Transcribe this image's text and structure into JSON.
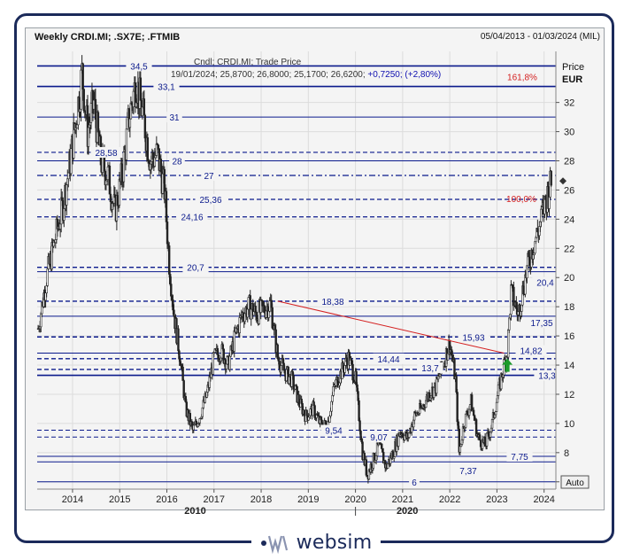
{
  "header": {
    "title": "Weekly CRDI.MI; .SX7E; .FTMIB",
    "date_range": "05/04/2013 - 01/03/2024 (MIL)"
  },
  "legend": {
    "line1": "Cndl; CRDI.MI; Trade Price",
    "line2_base": "19/01/2024; 25,8700; 26,8000; 25,1700; 26,6200; ",
    "line2_change": "+0,7250; (+2,80%)"
  },
  "axis": {
    "y_title_1": "Price",
    "y_title_2": "EUR",
    "auto_button": "Auto"
  },
  "footer": {
    "logo_text": "websim",
    "logo_mark": "W/S"
  },
  "colors": {
    "navy": "#0b1a8c",
    "price": "#222222",
    "trendline": "#d42020",
    "fib": "#d42020",
    "arrow": "#1c9a2a",
    "brand": "#1b2a5a"
  },
  "chart_data": {
    "type": "candlestick",
    "y_axis": {
      "min": 5.5,
      "max": 35.5,
      "ticks": [
        6,
        8,
        10,
        12,
        14,
        16,
        18,
        20,
        22,
        24,
        26,
        28,
        30,
        32
      ],
      "tick_labels": [
        "6",
        "8",
        "10",
        "12",
        "14",
        "16",
        "18",
        "20",
        "22",
        "24",
        "26",
        "28",
        "30",
        "32"
      ],
      "side": "right"
    },
    "x_axis": {
      "year_ticks": [
        2014,
        2015,
        2016,
        2017,
        2018,
        2019,
        2020,
        2021,
        2022,
        2023,
        2024
      ],
      "year_labels": [
        "2014",
        "2015",
        "2016",
        "2017",
        "2018",
        "2019",
        "2020",
        "2021",
        "2022",
        "2023",
        "2024"
      ],
      "decade_labels": [
        {
          "x": 2016.6,
          "label": "2010"
        },
        {
          "x": 2021.1,
          "label": "2020"
        }
      ]
    },
    "grid": true,
    "price_series": {
      "name": "CRDI.MI",
      "time": [
        2013.27,
        2013.45,
        2013.62,
        2013.8,
        2013.95,
        2014.08,
        2014.2,
        2014.32,
        2014.45,
        2014.6,
        2014.75,
        2014.9,
        2015.05,
        2015.2,
        2015.35,
        2015.5,
        2015.65,
        2015.8,
        2015.95,
        2016.05,
        2016.15,
        2016.28,
        2016.4,
        2016.55,
        2016.7,
        2016.85,
        2017.0,
        2017.15,
        2017.3,
        2017.45,
        2017.6,
        2017.75,
        2017.9,
        2018.05,
        2018.2,
        2018.35,
        2018.5,
        2018.65,
        2018.8,
        2018.95,
        2019.1,
        2019.25,
        2019.4,
        2019.55,
        2019.7,
        2019.85,
        2020.0,
        2020.15,
        2020.25,
        2020.38,
        2020.5,
        2020.65,
        2020.8,
        2020.95,
        2021.1,
        2021.25,
        2021.4,
        2021.55,
        2021.7,
        2021.85,
        2022.0,
        2022.12,
        2022.2,
        2022.3,
        2022.45,
        2022.6,
        2022.75,
        2022.9,
        2023.05,
        2023.15,
        2023.22,
        2023.3,
        2023.45,
        2023.6,
        2023.75,
        2023.9,
        2024.05,
        2024.17
      ],
      "close": [
        16.5,
        20.0,
        22.5,
        25.0,
        28.0,
        31.0,
        34.0,
        30.0,
        32.0,
        28.0,
        27.0,
        24.5,
        27.0,
        31.0,
        33.5,
        31.0,
        28.0,
        28.5,
        26.0,
        21.0,
        17.5,
        14.5,
        11.0,
        9.5,
        10.5,
        12.0,
        14.5,
        15.0,
        14.0,
        16.0,
        17.5,
        18.0,
        17.5,
        17.8,
        18.2,
        14.5,
        13.5,
        13.0,
        11.5,
        10.5,
        11.0,
        10.0,
        9.8,
        12.5,
        13.5,
        14.5,
        13.0,
        8.0,
        6.5,
        7.5,
        8.5,
        7.0,
        8.0,
        9.5,
        9.0,
        10.5,
        11.0,
        12.0,
        12.5,
        14.0,
        15.5,
        13.0,
        8.0,
        10.0,
        11.5,
        9.0,
        8.5,
        10.0,
        12.5,
        14.0,
        15.0,
        19.0,
        17.5,
        20.0,
        22.0,
        23.5,
        25.5,
        26.62
      ]
    },
    "horizontal_levels": [
      {
        "value": 34.5,
        "label": "34,5",
        "style": "solid",
        "weight": 1.6
      },
      {
        "value": 33.1,
        "label": "33,1",
        "style": "solid",
        "weight": 1.6
      },
      {
        "value": 31.0,
        "label": "31",
        "style": "solid",
        "weight": 1.0
      },
      {
        "value": 28.58,
        "label": "28,58",
        "style": "dash",
        "weight": 1.2
      },
      {
        "value": 28.0,
        "label": "28",
        "style": "solid",
        "weight": 1.0
      },
      {
        "value": 27.0,
        "label": "27",
        "style": "dashdot",
        "weight": 1.2
      },
      {
        "value": 25.36,
        "label": "25,36",
        "style": "dash",
        "weight": 1.3
      },
      {
        "value": 24.16,
        "label": "24,16",
        "style": "dash",
        "weight": 1.3
      },
      {
        "value": 20.7,
        "label": "20,7",
        "style": "dash",
        "weight": 1.4
      },
      {
        "value": 20.4,
        "label": "20,4",
        "style": "solid",
        "weight": 1.0
      },
      {
        "value": 18.38,
        "label": "18,38",
        "style": "dash",
        "weight": 1.4
      },
      {
        "value": 17.35,
        "label": "17,35",
        "style": "solid",
        "weight": 1.0
      },
      {
        "value": 15.93,
        "label": "15,93",
        "style": "dash",
        "weight": 1.4
      },
      {
        "value": 14.82,
        "label": "14,82",
        "style": "solid",
        "weight": 1.0
      },
      {
        "value": 14.44,
        "label": "14,44",
        "style": "dash",
        "weight": 1.4
      },
      {
        "value": 13.7,
        "label": "13,7",
        "style": "dash",
        "weight": 1.4
      },
      {
        "value": 13.3,
        "label": "13,3",
        "style": "solid",
        "weight": 1.6
      },
      {
        "value": 9.54,
        "label": "9,54",
        "style": "dash",
        "weight": 1.0
      },
      {
        "value": 9.07,
        "label": "9,07",
        "style": "dash",
        "weight": 1.0
      },
      {
        "value": 7.75,
        "label": "7,75",
        "style": "solid",
        "weight": 1.0
      },
      {
        "value": 7.37,
        "label": "7,37",
        "style": "solid",
        "weight": 1.0
      },
      {
        "value": 6.0,
        "label": "6",
        "style": "solid",
        "weight": 1.0
      }
    ],
    "fibonacci_labels": [
      {
        "value": 34.5,
        "label": "161,8%"
      },
      {
        "value": 25.36,
        "label": "100,0%"
      }
    ],
    "trendline": {
      "x1": 2018.35,
      "y1": 18.38,
      "x2": 2023.15,
      "y2": 14.82
    },
    "signal_arrow": {
      "x": 2023.22,
      "y": 13.9,
      "direction": "up"
    },
    "last_value_marker": {
      "x": 2024.17,
      "y": 26.62
    }
  }
}
